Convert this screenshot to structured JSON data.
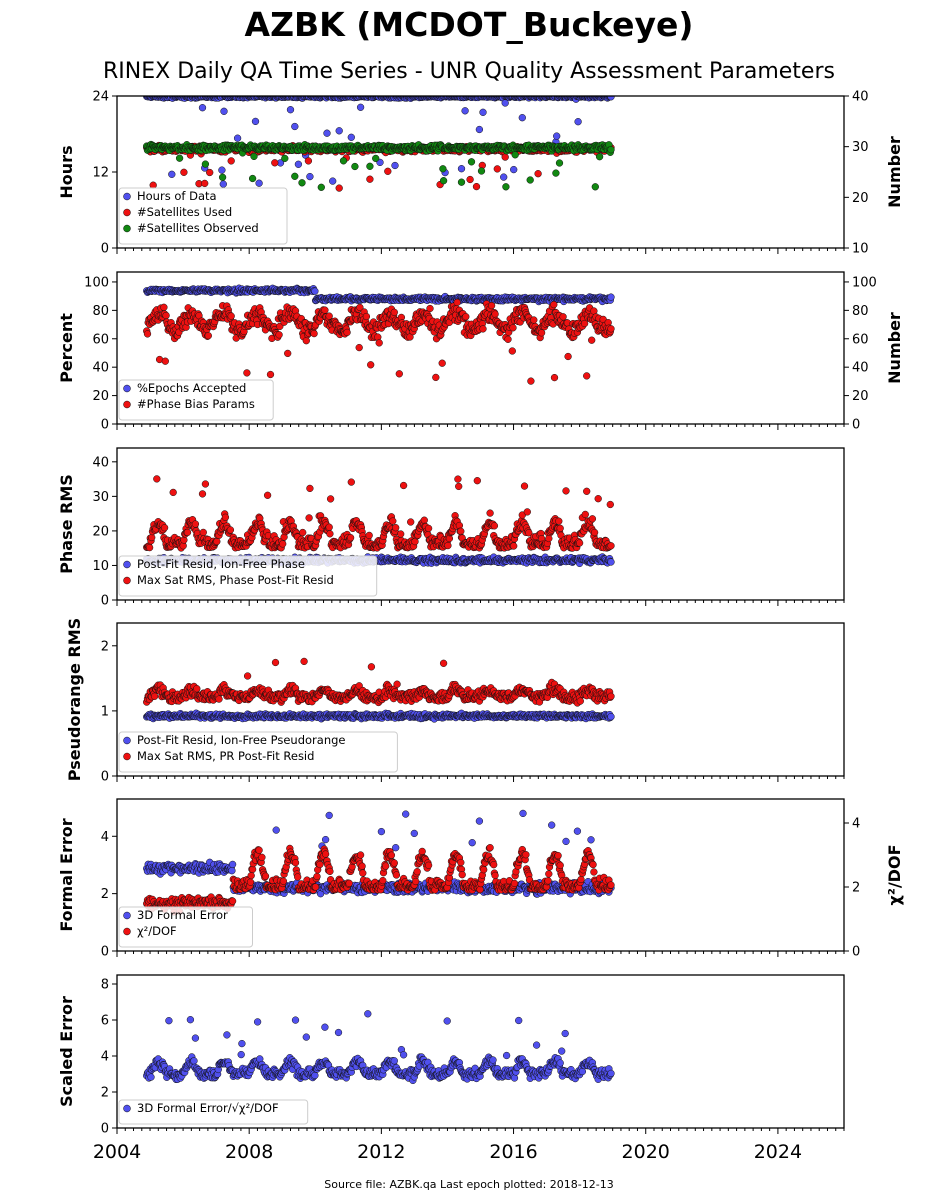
{
  "title": "AZBK (MCDOT_Buckeye)",
  "subtitle": "RINEX Daily QA Time Series - UNR Quality Assessment Parameters",
  "footer": "Source file: AZBK.qa Last epoch plotted: 2018-12-13",
  "colors": {
    "blue": "#5050ee",
    "red": "#ee1111",
    "green": "#118811"
  },
  "chart_data": [
    {
      "type": "scatter",
      "ylabel": "Hours",
      "ylabel2": "Number",
      "ylim": [
        0,
        24
      ],
      "ylim2": [
        10,
        40
      ],
      "yticks": [
        "0",
        "12",
        "24"
      ],
      "yticks2": [
        "10",
        "20",
        "30",
        "40"
      ],
      "xlim": [
        2004,
        2026
      ],
      "legend": "lower-left",
      "series": [
        {
          "name": "Hours of Data",
          "color": "#5050ee",
          "axis": "left",
          "x_range": [
            2004.9,
            2018.95
          ],
          "typical": 24
        },
        {
          "name": "#Satellites Used",
          "color": "#ee1111",
          "axis": "right",
          "x_range": [
            2004.9,
            2018.95
          ],
          "typical": 29.5
        },
        {
          "name": "#Satellites Observed",
          "color": "#118811",
          "axis": "right",
          "x_range": [
            2004.9,
            2018.95
          ],
          "typical": 29.8
        }
      ]
    },
    {
      "type": "scatter",
      "ylabel": "Percent",
      "ylabel2": "Number",
      "ylim": [
        0,
        107
      ],
      "ylim2": [
        0,
        107
      ],
      "yticks": [
        "0",
        "20",
        "40",
        "60",
        "80",
        "100"
      ],
      "yticks2": [
        "0",
        "20",
        "40",
        "60",
        "80",
        "100"
      ],
      "xlim": [
        2004,
        2026
      ],
      "legend": "lower-left",
      "series": [
        {
          "name": "%Epochs Accepted",
          "color": "#5050ee",
          "axis": "left",
          "x_range": [
            2004.9,
            2018.95
          ],
          "typical": 90
        },
        {
          "name": "#Phase Bias Params",
          "color": "#ee1111",
          "axis": "right",
          "x_range": [
            2004.9,
            2018.95
          ],
          "typical": 75
        }
      ]
    },
    {
      "type": "scatter",
      "ylabel": "Phase RMS",
      "ylim": [
        0,
        44
      ],
      "yticks": [
        "0",
        "10",
        "20",
        "30",
        "40"
      ],
      "xlim": [
        2004,
        2026
      ],
      "legend": "lower-left",
      "series": [
        {
          "name": "Post-Fit Resid, Ion-Free Phase",
          "color": "#5050ee",
          "axis": "left",
          "x_range": [
            2004.9,
            2018.95
          ],
          "typical": 12
        },
        {
          "name": "Max Sat RMS, Phase Post-Fit Resid",
          "color": "#ee1111",
          "axis": "left",
          "x_range": [
            2004.9,
            2018.95
          ],
          "typical": 16
        }
      ]
    },
    {
      "type": "scatter",
      "ylabel": "Pseudorange RMS",
      "ylim": [
        0,
        2.35
      ],
      "yticks": [
        "0",
        "1",
        "2"
      ],
      "xlim": [
        2004,
        2026
      ],
      "legend": "lower-left",
      "series": [
        {
          "name": "Post-Fit Resid, Ion-Free Pseudorange",
          "color": "#5050ee",
          "axis": "left",
          "x_range": [
            2004.9,
            2018.95
          ],
          "typical": 0.95
        },
        {
          "name": "Max Sat RMS, PR Post-Fit Resid",
          "color": "#ee1111",
          "axis": "left",
          "x_range": [
            2004.9,
            2018.95
          ],
          "typical": 1.2
        }
      ]
    },
    {
      "type": "scatter",
      "ylabel": "Formal Error",
      "ylabel2": "χ²/DOF",
      "ylim": [
        0,
        5.3
      ],
      "ylim2": [
        0,
        4.75
      ],
      "yticks": [
        "0",
        "2",
        "4"
      ],
      "yticks2": [
        "0",
        "2",
        "4"
      ],
      "xlim": [
        2004,
        2026
      ],
      "legend": "lower-left",
      "series": [
        {
          "name": "3D Formal Error",
          "color": "#5050ee",
          "axis": "left",
          "x_range": [
            2004.9,
            2018.95
          ],
          "typical": 2.3
        },
        {
          "name": "χ²/DOF",
          "color": "#ee1111",
          "axis": "right",
          "x_range": [
            2004.9,
            2018.95
          ],
          "typical": 2.0
        }
      ]
    },
    {
      "type": "scatter",
      "ylabel": "Scaled Error",
      "ylim": [
        0,
        8.5
      ],
      "yticks": [
        "0",
        "2",
        "4",
        "6",
        "8"
      ],
      "xlim": [
        2004,
        2026
      ],
      "xticks": [
        "2004",
        "2008",
        "2012",
        "2016",
        "2020",
        "2024"
      ],
      "legend": "lower-left",
      "series": [
        {
          "name": "3D Formal Error/√χ²/DOF",
          "color": "#5050ee",
          "axis": "left",
          "x_range": [
            2004.9,
            2018.95
          ],
          "typical": 3.0
        }
      ]
    }
  ]
}
